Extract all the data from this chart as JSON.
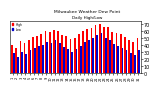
{
  "title": "Milwaukee Weather Dew Point",
  "subtitle": "Daily High/Low",
  "background_color": "#ffffff",
  "high_color": "#ff0000",
  "low_color": "#0000cc",
  "legend_high": "High",
  "legend_low": "Low",
  "ylim": [
    0,
    75
  ],
  "ytick_labels": [
    "0",
    "10",
    "20",
    "30",
    "40",
    "50",
    "60",
    "70"
  ],
  "ytick_vals": [
    0,
    10,
    20,
    30,
    40,
    50,
    60,
    70
  ],
  "days": [
    1,
    2,
    3,
    4,
    5,
    6,
    7,
    8,
    9,
    10,
    11,
    12,
    13,
    14,
    15,
    16,
    17,
    18,
    19,
    20,
    21,
    22,
    23,
    24,
    25,
    26,
    27,
    28,
    29,
    30,
    31
  ],
  "high": [
    40,
    36,
    46,
    42,
    47,
    52,
    53,
    56,
    60,
    58,
    62,
    60,
    54,
    53,
    48,
    50,
    55,
    60,
    63,
    64,
    68,
    70,
    66,
    65,
    58,
    57,
    55,
    51,
    47,
    44,
    50
  ],
  "low": [
    28,
    22,
    30,
    27,
    32,
    36,
    38,
    40,
    44,
    42,
    47,
    43,
    37,
    34,
    30,
    34,
    39,
    44,
    47,
    50,
    54,
    57,
    50,
    47,
    41,
    39,
    36,
    33,
    29,
    26,
    33
  ]
}
